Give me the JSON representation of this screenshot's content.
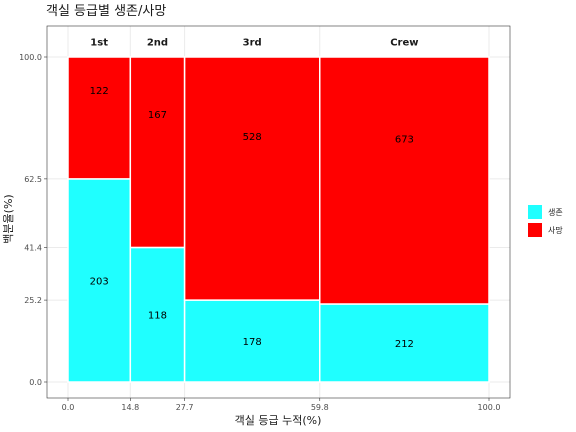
{
  "chart_data": {
    "type": "mosaic",
    "title": "객실 등급별 생존/사망",
    "xlabel": "객실 등급 누적(%)",
    "ylabel": "백분율(%)",
    "xlim": [
      0,
      100
    ],
    "ylim": [
      0,
      100
    ],
    "x_ticks": [
      "0.0",
      "14.8",
      "27.7",
      "59.8",
      "100.0"
    ],
    "y_ticks": [
      "0.0",
      "25.2",
      "41.4",
      "62.5",
      "100.0"
    ],
    "grid": true,
    "legend_position": "right",
    "categories": [
      "1st",
      "2nd",
      "3rd",
      "Crew"
    ],
    "x_cumulative": [
      0.0,
      14.8,
      27.7,
      59.8,
      100.0
    ],
    "series": [
      {
        "name": "생존",
        "color": "#1FFFFF",
        "counts": [
          203,
          118,
          178,
          212
        ],
        "percent": [
          62.5,
          41.4,
          25.2,
          24.0
        ]
      },
      {
        "name": "사망",
        "color": "#FF0000",
        "counts": [
          122,
          167,
          528,
          673
        ],
        "percent": [
          37.5,
          58.6,
          74.8,
          76.0
        ]
      }
    ]
  }
}
